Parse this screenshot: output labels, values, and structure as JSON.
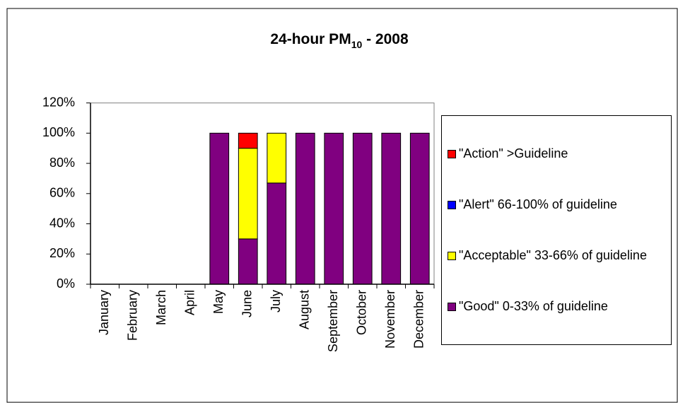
{
  "chart_data": {
    "type": "stacked_bar",
    "title": [
      "24-hour PM",
      "10",
      " - 2008"
    ],
    "categories": [
      "January",
      "February",
      "March",
      "April",
      "May",
      "June",
      "July",
      "August",
      "September",
      "October",
      "November",
      "December"
    ],
    "series": [
      {
        "name": "\"Good\" 0-33% of guideline",
        "color": "#800080",
        "values": [
          null,
          null,
          null,
          null,
          100,
          30,
          67,
          100,
          100,
          100,
          100,
          100
        ]
      },
      {
        "name": "\"Acceptable\" 33-66% of guideline",
        "color": "#ffff00",
        "values": [
          null,
          null,
          null,
          null,
          0,
          60,
          33,
          0,
          0,
          0,
          0,
          0
        ]
      },
      {
        "name": "\"Alert\" 66-100% of guideline",
        "color": "#0000ff",
        "values": [
          null,
          null,
          null,
          null,
          0,
          0,
          0,
          0,
          0,
          0,
          0,
          0
        ]
      },
      {
        "name": "\"Action\" >Guideline",
        "color": "#ff0000",
        "values": [
          null,
          null,
          null,
          null,
          0,
          10,
          0,
          0,
          0,
          0,
          0,
          0
        ]
      }
    ],
    "ylim": [
      0,
      120
    ],
    "yticks": [
      {
        "value": 0,
        "label": "0%"
      },
      {
        "value": 20,
        "label": "20%"
      },
      {
        "value": 40,
        "label": "40%"
      },
      {
        "value": 60,
        "label": "60%"
      },
      {
        "value": 80,
        "label": "80%"
      },
      {
        "value": 100,
        "label": "100%"
      },
      {
        "value": 120,
        "label": "120%"
      }
    ],
    "grid": false,
    "legend": "right"
  }
}
